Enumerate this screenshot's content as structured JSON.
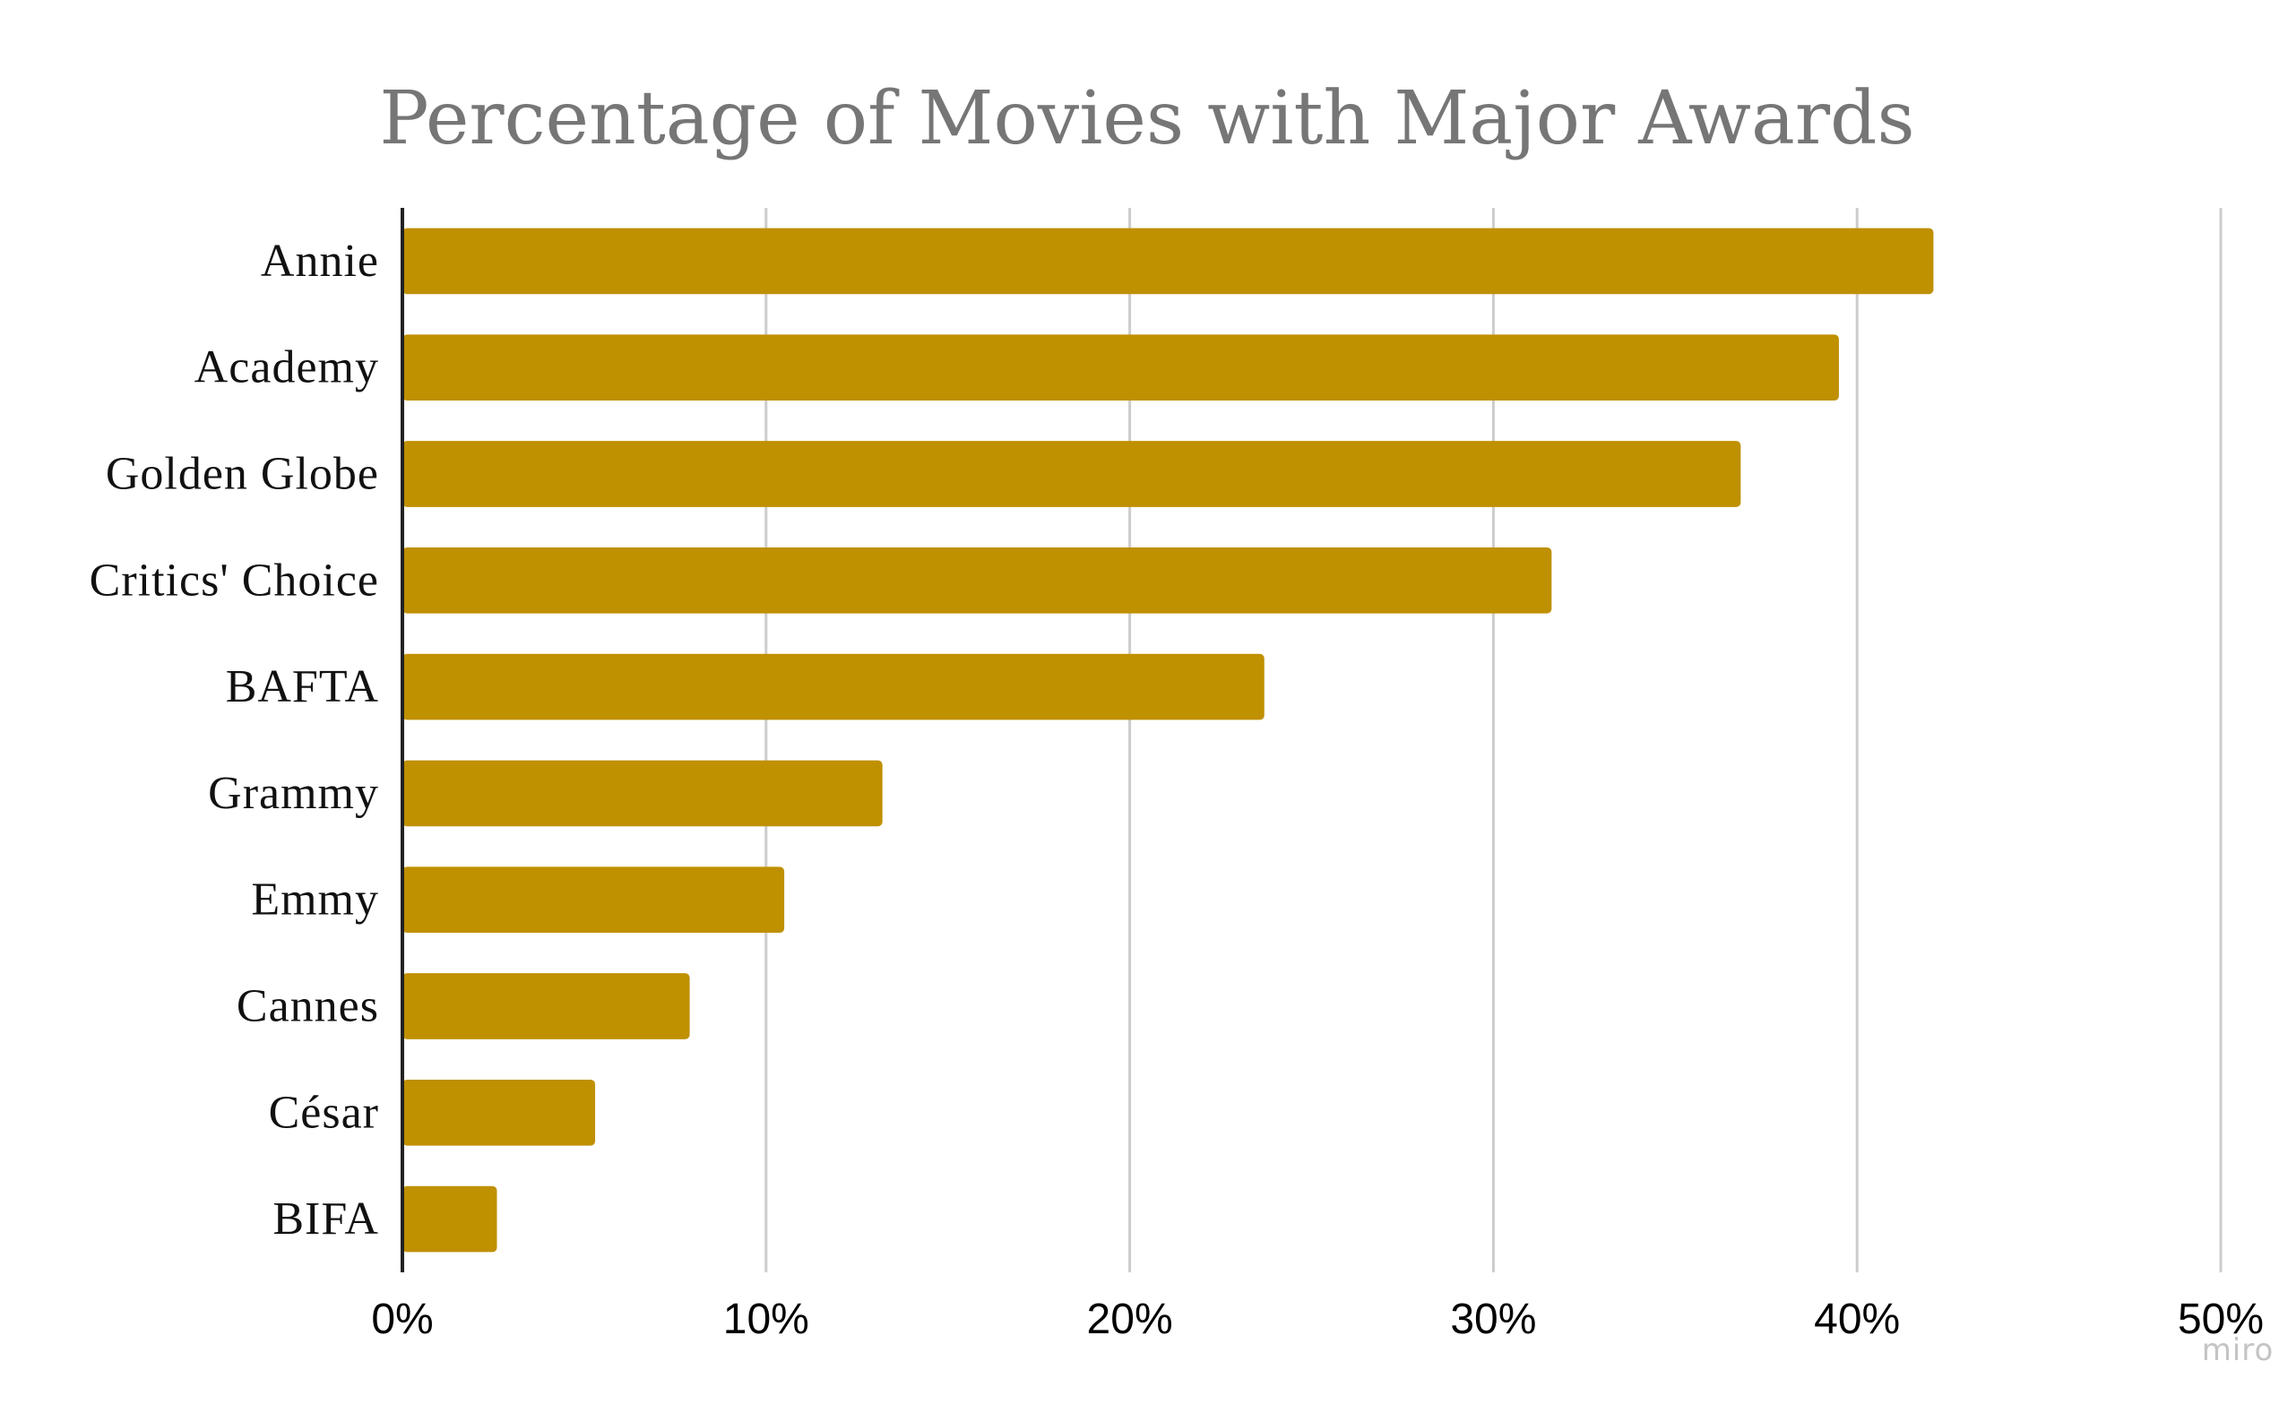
{
  "chart_data": {
    "type": "bar",
    "orientation": "horizontal",
    "title": "Percentage of Movies with Major Awards",
    "xlabel": "",
    "ylabel": "",
    "categories": [
      "Annie",
      "Academy",
      "Golden Globe",
      "Critics' Choice",
      "BAFTA",
      "Grammy",
      "Emmy",
      "Cannes",
      "César",
      "BIFA"
    ],
    "values": [
      42.1,
      39.5,
      36.8,
      31.6,
      23.7,
      13.2,
      10.5,
      7.9,
      5.3,
      2.6
    ],
    "xlim": [
      0,
      50
    ],
    "x_ticks": [
      "0%",
      "10%",
      "20%",
      "30%",
      "40%",
      "50%"
    ],
    "grid": "vertical",
    "legend": "none",
    "colors": {
      "bar": "#BF9000",
      "grid": "#CCCCCC",
      "axis": "#222222"
    }
  },
  "watermark": "miro"
}
